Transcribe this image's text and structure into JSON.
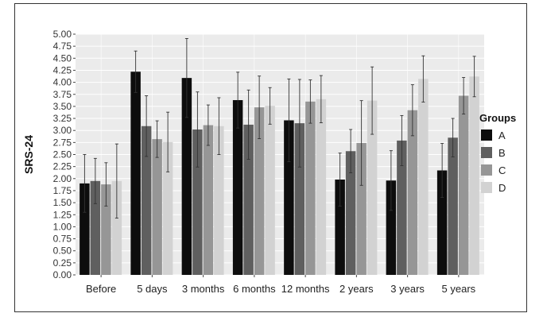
{
  "chart_data": {
    "type": "bar",
    "title": "",
    "xlabel": "",
    "ylabel": "SRS-24",
    "ylim": [
      0,
      5
    ],
    "y_ticks": [
      "0.00",
      "0.25",
      "0.50",
      "0.75",
      "1.00",
      "1.25",
      "1.50",
      "1.75",
      "2.00",
      "2.25",
      "2.50",
      "2.75",
      "3.00",
      "3.25",
      "3.50",
      "3.75",
      "4.00",
      "4.25",
      "4.50",
      "4.75",
      "5.00"
    ],
    "categories": [
      "Before",
      "5 days",
      "3 months",
      "6 months",
      "12 months",
      "2 years",
      "3 years",
      "5 years"
    ],
    "legend_title": "Groups",
    "legend_position": "right",
    "grid": true,
    "series": [
      {
        "name": "A",
        "color": "#0d0d0d",
        "values": [
          1.9,
          4.22,
          4.09,
          3.63,
          3.21,
          1.98,
          1.96,
          2.17
        ],
        "error": [
          0.6,
          0.43,
          0.82,
          0.58,
          0.86,
          0.55,
          0.62,
          0.56
        ]
      },
      {
        "name": "B",
        "color": "#5f5f5f",
        "values": [
          1.95,
          3.09,
          3.02,
          3.12,
          3.15,
          2.57,
          2.79,
          2.85
        ],
        "error": [
          0.47,
          0.63,
          0.78,
          0.72,
          0.91,
          0.45,
          0.52,
          0.4
        ]
      },
      {
        "name": "C",
        "color": "#969696",
        "values": [
          1.88,
          2.82,
          3.11,
          3.48,
          3.6,
          2.74,
          3.42,
          3.72
        ],
        "error": [
          0.45,
          0.38,
          0.42,
          0.65,
          0.45,
          0.88,
          0.53,
          0.38
        ]
      },
      {
        "name": "D",
        "color": "#d2d2d2",
        "values": [
          1.95,
          2.76,
          3.09,
          3.51,
          3.65,
          3.62,
          4.07,
          4.12
        ],
        "error": [
          0.77,
          0.62,
          0.59,
          0.38,
          0.49,
          0.7,
          0.48,
          0.42
        ]
      }
    ]
  }
}
